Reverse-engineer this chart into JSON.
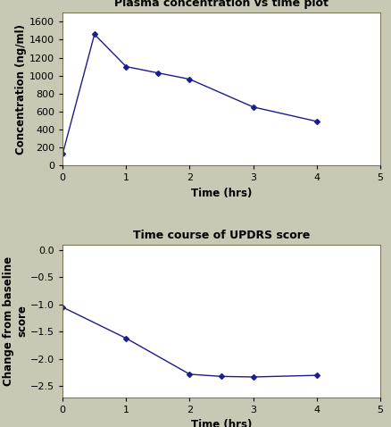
{
  "plot1": {
    "title": "Plasma concentration vs time plot",
    "xlabel": "Time (hrs)",
    "ylabel": "Concentration (ng/ml)",
    "x": [
      0,
      0.5,
      1,
      1.5,
      2,
      3,
      4
    ],
    "y": [
      130,
      1460,
      1100,
      1030,
      960,
      650,
      490
    ],
    "xlim": [
      0,
      5
    ],
    "ylim": [
      0,
      1700
    ],
    "yticks": [
      0,
      200,
      400,
      600,
      800,
      1000,
      1200,
      1400,
      1600
    ],
    "xticks": [
      0,
      1,
      2,
      3,
      4,
      5
    ],
    "line_color": "#1C1C8C",
    "marker": "D",
    "marker_size": 3
  },
  "plot2": {
    "title": "Time course of UPDRS score",
    "xlabel": "Time (hrs)",
    "ylabel": "Change from baseline\nscore",
    "x": [
      0,
      1,
      2,
      2.5,
      3,
      4
    ],
    "y": [
      -1.05,
      -1.62,
      -2.28,
      -2.32,
      -2.33,
      -2.3
    ],
    "xlim": [
      0,
      5
    ],
    "ylim": [
      -2.7,
      0.1
    ],
    "yticks": [
      0,
      -0.5,
      -1.0,
      -1.5,
      -2.0,
      -2.5
    ],
    "xticks": [
      0,
      1,
      2,
      3,
      4,
      5
    ],
    "line_color": "#1C1C8C",
    "marker": "D",
    "marker_size": 3
  },
  "figure_bg": "#c8c8b4",
  "axes_bg": "#ffffff",
  "panel_bg": "#c8c8b4",
  "title_fontsize": 9,
  "label_fontsize": 8.5,
  "tick_fontsize": 8
}
